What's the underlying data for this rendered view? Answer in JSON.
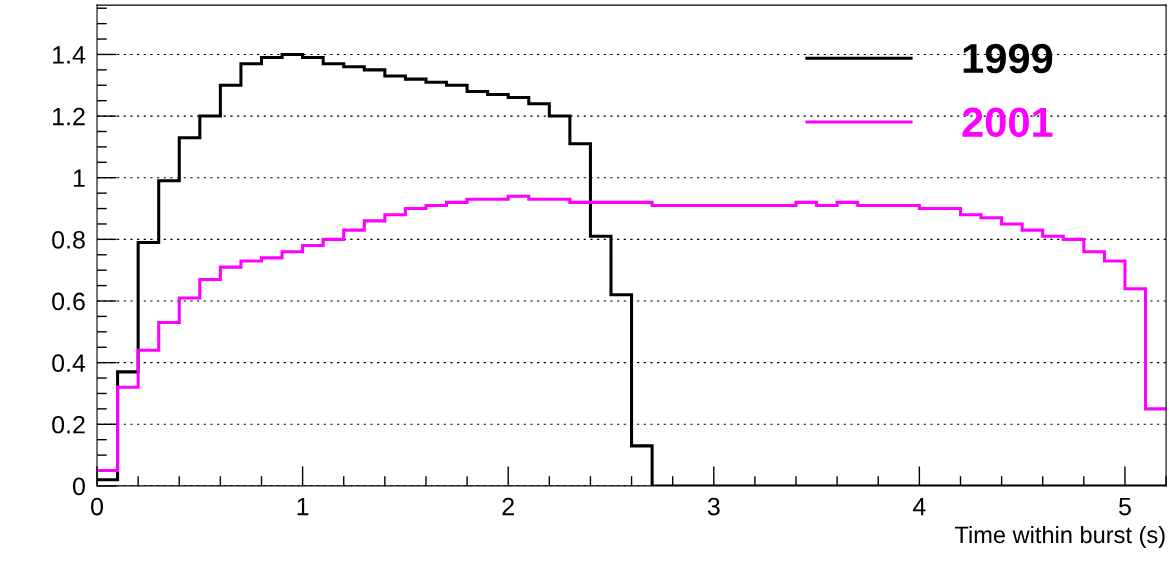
{
  "chart_data": {
    "type": "histogram",
    "xlabel": "Time within burst (s)",
    "bins": [
      0,
      0.1,
      0.2,
      0.3,
      0.4,
      0.5,
      0.6,
      0.7,
      0.8,
      0.9,
      1.0,
      1.1,
      1.2,
      1.3,
      1.4,
      1.5,
      1.6,
      1.7,
      1.8,
      1.9,
      2.0,
      2.1,
      2.2,
      2.3,
      2.4,
      2.5,
      2.6,
      2.7,
      2.8,
      2.9,
      3.0,
      3.1,
      3.2,
      3.3,
      3.4,
      3.5,
      3.6,
      3.7,
      3.8,
      3.9,
      4.0,
      4.1,
      4.2,
      4.3,
      4.4,
      4.5,
      4.6,
      4.7,
      4.8,
      4.9,
      5.0,
      5.1,
      5.2
    ],
    "series": [
      {
        "name": "1999",
        "color": "#000000",
        "values": [
          0.02,
          0.37,
          0.79,
          0.99,
          1.13,
          1.2,
          1.3,
          1.37,
          1.39,
          1.4,
          1.39,
          1.37,
          1.36,
          1.35,
          1.33,
          1.32,
          1.31,
          1.3,
          1.28,
          1.27,
          1.26,
          1.24,
          1.2,
          1.11,
          0.81,
          0.62,
          0.13,
          0,
          0,
          0,
          0,
          0,
          0,
          0,
          0,
          0,
          0,
          0,
          0,
          0,
          0,
          0,
          0,
          0,
          0,
          0,
          0,
          0,
          0,
          0,
          0,
          0
        ]
      },
      {
        "name": "2001",
        "color": "#ff00ff",
        "values": [
          0.05,
          0.32,
          0.44,
          0.53,
          0.61,
          0.67,
          0.71,
          0.73,
          0.74,
          0.76,
          0.78,
          0.8,
          0.83,
          0.86,
          0.88,
          0.9,
          0.91,
          0.92,
          0.93,
          0.93,
          0.94,
          0.93,
          0.93,
          0.92,
          0.92,
          0.92,
          0.92,
          0.91,
          0.91,
          0.91,
          0.91,
          0.91,
          0.91,
          0.91,
          0.92,
          0.91,
          0.92,
          0.91,
          0.91,
          0.91,
          0.9,
          0.9,
          0.88,
          0.87,
          0.85,
          0.83,
          0.81,
          0.8,
          0.76,
          0.73,
          0.64,
          0.25
        ]
      }
    ],
    "xlim": [
      0,
      5.2
    ],
    "ylim": [
      0,
      1.56
    ],
    "xticks": [
      0,
      1,
      2,
      3,
      4,
      5
    ],
    "yticks": [
      0,
      0.2,
      0.4,
      0.6,
      0.8,
      1,
      1.2,
      1.4
    ],
    "grid": "y",
    "legend": "top right"
  }
}
